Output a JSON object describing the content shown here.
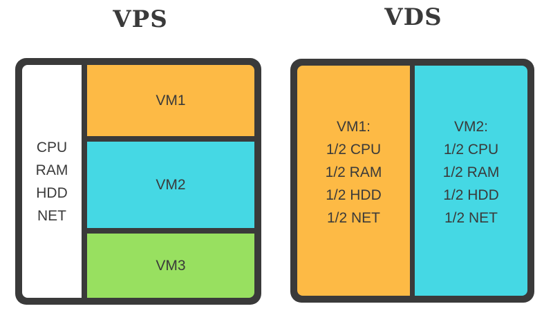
{
  "vps": {
    "title": "VPS",
    "shared_resources": [
      "CPU",
      "RAM",
      "HDD",
      "NET"
    ],
    "vms": [
      {
        "label": "VM1",
        "color": "#fdba45"
      },
      {
        "label": "VM2",
        "color": "#45d8e4"
      },
      {
        "label": "VM3",
        "color": "#98e060"
      }
    ]
  },
  "vds": {
    "title": "VDS",
    "vms": [
      {
        "label": "VM1:",
        "resources": [
          "1/2 CPU",
          "1/2 RAM",
          "1/2 HDD",
          "1/2 NET"
        ],
        "color": "#fdba45"
      },
      {
        "label": "VM2:",
        "resources": [
          "1/2 CPU",
          "1/2 RAM",
          "1/2 HDD",
          "1/2 NET"
        ],
        "color": "#45d8e4"
      }
    ]
  },
  "colors": {
    "border": "#3a3a3a"
  }
}
